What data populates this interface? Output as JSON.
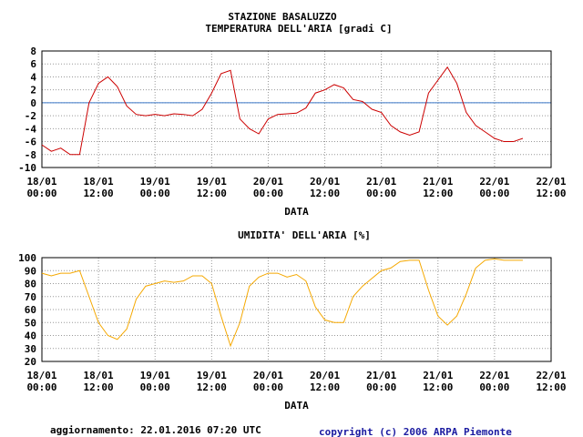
{
  "chart_data": [
    {
      "type": "line",
      "title": "STAZIONE BASALUZZO",
      "subtitle": "TEMPERATURA DELL'ARIA [gradi C]",
      "xlabel": "DATA",
      "x": [
        "18/01 00:00",
        "18/01 02:00",
        "18/01 04:00",
        "18/01 06:00",
        "18/01 08:00",
        "18/01 10:00",
        "18/01 12:00",
        "18/01 14:00",
        "18/01 16:00",
        "18/01 18:00",
        "18/01 20:00",
        "18/01 22:00",
        "19/01 00:00",
        "19/01 02:00",
        "19/01 04:00",
        "19/01 06:00",
        "19/01 08:00",
        "19/01 10:00",
        "19/01 12:00",
        "19/01 14:00",
        "19/01 16:00",
        "19/01 18:00",
        "19/01 20:00",
        "19/01 22:00",
        "20/01 00:00",
        "20/01 02:00",
        "20/01 04:00",
        "20/01 06:00",
        "20/01 08:00",
        "20/01 10:00",
        "20/01 12:00",
        "20/01 14:00",
        "20/01 16:00",
        "20/01 18:00",
        "20/01 20:00",
        "20/01 22:00",
        "21/01 00:00",
        "21/01 02:00",
        "21/01 04:00",
        "21/01 06:00",
        "21/01 08:00",
        "21/01 10:00",
        "21/01 12:00",
        "21/01 14:00",
        "21/01 16:00",
        "21/01 18:00",
        "21/01 20:00",
        "21/01 22:00",
        "22/01 00:00",
        "22/01 02:00",
        "22/01 04:00",
        "22/01 06:00"
      ],
      "values": [
        -6.5,
        -7.5,
        -7,
        -8,
        -8,
        0,
        3,
        4,
        2.5,
        -0.5,
        -1.8,
        -2,
        -1.8,
        -2,
        -1.7,
        -1.8,
        -2,
        -1,
        1.5,
        4.5,
        5,
        -2.5,
        -4,
        -4.8,
        -2.5,
        -1.8,
        -1.7,
        -1.6,
        -0.8,
        1.5,
        2,
        2.8,
        2.3,
        0.5,
        0.2,
        -1,
        -1.5,
        -3.5,
        -4.5,
        -5,
        -4.5,
        1.5,
        3.5,
        5.5,
        3,
        -1.5,
        -3.5,
        -4.5,
        -5.5,
        -6,
        -6,
        -5.5
      ],
      "color": "#cc0000",
      "reference_line": {
        "value": 0,
        "color": "#3a78c8"
      },
      "xlim": [
        "18/01 00:00",
        "22/01 12:00"
      ],
      "xticks": [
        "18/01 00:00",
        "18/01 12:00",
        "19/01 00:00",
        "19/01 12:00",
        "20/01 00:00",
        "20/01 12:00",
        "21/01 00:00",
        "21/01 12:00",
        "22/01 00:00",
        "22/01 12:00"
      ],
      "ylim": [
        -10,
        8
      ],
      "yticks": [
        -10,
        -8,
        -6,
        -4,
        -2,
        0,
        2,
        4,
        6,
        8
      ],
      "grid": true
    },
    {
      "type": "line",
      "title": "UMIDITA' DELL'ARIA [%]",
      "xlabel": "DATA",
      "x": [
        "18/01 00:00",
        "18/01 02:00",
        "18/01 04:00",
        "18/01 06:00",
        "18/01 08:00",
        "18/01 10:00",
        "18/01 12:00",
        "18/01 14:00",
        "18/01 16:00",
        "18/01 18:00",
        "18/01 20:00",
        "18/01 22:00",
        "19/01 00:00",
        "19/01 02:00",
        "19/01 04:00",
        "19/01 06:00",
        "19/01 08:00",
        "19/01 10:00",
        "19/01 12:00",
        "19/01 14:00",
        "19/01 16:00",
        "19/01 18:00",
        "19/01 20:00",
        "19/01 22:00",
        "20/01 00:00",
        "20/01 02:00",
        "20/01 04:00",
        "20/01 06:00",
        "20/01 08:00",
        "20/01 10:00",
        "20/01 12:00",
        "20/01 14:00",
        "20/01 16:00",
        "20/01 18:00",
        "20/01 20:00",
        "20/01 22:00",
        "21/01 00:00",
        "21/01 02:00",
        "21/01 04:00",
        "21/01 06:00",
        "21/01 08:00",
        "21/01 10:00",
        "21/01 12:00",
        "21/01 14:00",
        "21/01 16:00",
        "21/01 18:00",
        "21/01 20:00",
        "21/01 22:00",
        "22/01 00:00",
        "22/01 02:00",
        "22/01 04:00",
        "22/01 06:00"
      ],
      "values": [
        88,
        86,
        88,
        88,
        90,
        70,
        50,
        40,
        37,
        45,
        68,
        78,
        80,
        82,
        81,
        82,
        86,
        86,
        80,
        55,
        32,
        50,
        78,
        85,
        88,
        88,
        85,
        87,
        82,
        62,
        52,
        50,
        50,
        70,
        78,
        84,
        90,
        92,
        97,
        98,
        98,
        75,
        55,
        48,
        55,
        72,
        92,
        98,
        99,
        98,
        98,
        98
      ],
      "color": "#f5a800",
      "xlim": [
        "18/01 00:00",
        "22/01 12:00"
      ],
      "xticks": [
        "18/01 00:00",
        "18/01 12:00",
        "19/01 00:00",
        "19/01 12:00",
        "20/01 00:00",
        "20/01 12:00",
        "21/01 00:00",
        "21/01 12:00",
        "22/01 00:00",
        "22/01 12:00"
      ],
      "ylim": [
        20,
        100
      ],
      "yticks": [
        20,
        30,
        40,
        50,
        60,
        70,
        80,
        90,
        100
      ],
      "grid": true
    }
  ],
  "footer": {
    "update": "aggiornamento: 22.01.2016 07:20 UTC",
    "copyright": "copyright (c) 2006 ARPA Piemonte"
  }
}
